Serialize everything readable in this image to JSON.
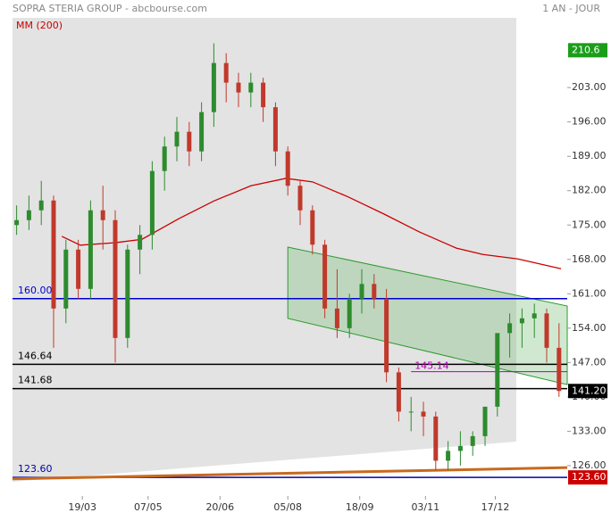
{
  "chart_data": {
    "type": "candlestick",
    "title": "SOPRA STERIA GROUP - abcbourse.com",
    "period": "1 AN - JOUR",
    "ma_label": "MM (200)",
    "ylim": [
      120.9,
      217.2
    ],
    "xlim": [
      0,
      270
    ],
    "yticks": [
      {
        "value": 126,
        "label": "126.00"
      },
      {
        "value": 133,
        "label": "133.00"
      },
      {
        "value": 140,
        "label": "140.00"
      },
      {
        "value": 147,
        "label": "147.00"
      },
      {
        "value": 154,
        "label": "154.00"
      },
      {
        "value": 161,
        "label": "161.00"
      },
      {
        "value": 168,
        "label": "168.00"
      },
      {
        "value": 175,
        "label": "175.00"
      },
      {
        "value": 182,
        "label": "182.00"
      },
      {
        "value": 189,
        "label": "189.00"
      },
      {
        "value": 196,
        "label": "196.00"
      },
      {
        "value": 203,
        "label": "203.00"
      }
    ],
    "xticks": [
      {
        "value": 34,
        "label": "19/03"
      },
      {
        "value": 66,
        "label": "07/05"
      },
      {
        "value": 101,
        "label": "20/06"
      },
      {
        "value": 134,
        "label": "05/08"
      },
      {
        "value": 169,
        "label": "18/09"
      },
      {
        "value": 201,
        "label": "03/11"
      },
      {
        "value": 235,
        "label": "17/12"
      }
    ],
    "candles": {
      "x": [
        2,
        8,
        14,
        20,
        26,
        32,
        38,
        44,
        50,
        56,
        62,
        68,
        74,
        80,
        86,
        92,
        98,
        104,
        110,
        116,
        122,
        128,
        134,
        140,
        146,
        152,
        158,
        164,
        170,
        176,
        182,
        188,
        194,
        200,
        206,
        212,
        218,
        224,
        230,
        236,
        242,
        248,
        254,
        260,
        266
      ],
      "open": [
        175,
        176,
        178,
        180,
        158,
        170,
        162,
        178,
        176,
        152,
        170,
        173,
        186,
        191,
        194,
        190,
        198,
        208,
        204,
        202,
        204,
        199,
        190,
        183,
        178,
        171,
        158,
        154,
        160,
        163,
        160,
        145,
        137,
        137,
        136,
        127,
        129,
        130,
        132,
        138,
        153,
        155,
        156,
        157,
        150
      ],
      "high": [
        179,
        181,
        184,
        181,
        172,
        172,
        180,
        183,
        178,
        171,
        175,
        188,
        193,
        197,
        196,
        200,
        212,
        210,
        206,
        206,
        205,
        200,
        191,
        184,
        179,
        172,
        166,
        161,
        166,
        165,
        162,
        146,
        140,
        139,
        137,
        131,
        133,
        133,
        138,
        152,
        157,
        158,
        159,
        158,
        155
      ],
      "low": [
        173,
        174,
        175,
        150,
        155,
        160,
        160,
        170,
        147,
        150,
        165,
        170,
        182,
        188,
        187,
        188,
        195,
        200,
        199,
        199,
        196,
        187,
        181,
        175,
        169,
        156,
        152,
        152,
        157,
        158,
        143,
        135,
        133,
        132,
        125,
        125,
        126,
        128,
        130,
        136,
        148,
        150,
        152,
        147,
        140
      ],
      "close": [
        176,
        178,
        180,
        158,
        170,
        162,
        178,
        176,
        152,
        170,
        173,
        186,
        191,
        194,
        190,
        198,
        208,
        204,
        202,
        204,
        199,
        190,
        183,
        178,
        171,
        158,
        154,
        160,
        163,
        160,
        145,
        137,
        137,
        136,
        127,
        129,
        130,
        132,
        138,
        153,
        155,
        156,
        157,
        150,
        141.2
      ]
    },
    "moving_average": {
      "name": "MM (200)",
      "color": "#cc0000",
      "x": [
        24,
        33,
        50,
        63,
        81,
        98,
        116,
        133,
        146,
        163,
        181,
        198,
        216,
        229,
        246,
        267
      ],
      "values": [
        172.7,
        170.9,
        171.4,
        172.1,
        176.3,
        179.9,
        183.0,
        184.5,
        183.8,
        180.8,
        177.2,
        173.6,
        170.3,
        169.0,
        168.1,
        166.1
      ]
    },
    "channel": {
      "x": [
        134,
        270
      ],
      "upper": [
        170.5,
        158.5
      ],
      "lower": [
        156,
        142.5
      ]
    },
    "support_line": {
      "x": [
        0,
        270
      ],
      "values": [
        123.3,
        125.6
      ]
    },
    "levels": [
      {
        "value": 160,
        "label": "160.00",
        "color": "#0000cc"
      },
      {
        "value": 146.64,
        "label": "146.64",
        "color": "#000000"
      },
      {
        "value": 141.68,
        "label": "141.68",
        "color": "#000000"
      },
      {
        "value": 123.6,
        "label": "123.60",
        "color": "#0000aa"
      }
    ],
    "annotation": {
      "value": 145.14,
      "label": "145.14",
      "x": 194,
      "color": "#b000b0"
    },
    "price_tags": [
      {
        "value": 210.6,
        "label": "210.6",
        "color": "#1a9e1a"
      },
      {
        "value": 141.2,
        "label": "141.20",
        "color": "#000000"
      },
      {
        "value": 123.6,
        "label": "123.60",
        "color": "#cc0000"
      }
    ]
  }
}
